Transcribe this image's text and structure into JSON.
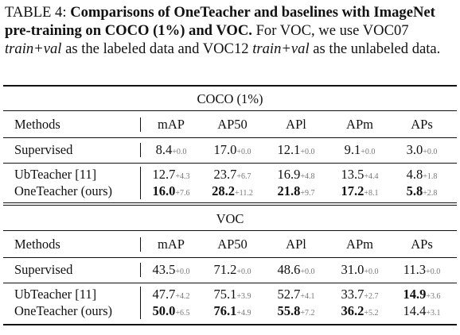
{
  "caption": [
    {
      "text": "TABLE 4: ",
      "style": "normal"
    },
    {
      "text": "Comparisons of OneTeacher and baselines with ImageNet pre-training on COCO (1%) and VOC.",
      "style": "bold"
    },
    {
      "text": " For VOC, we use VOC07 ",
      "style": "normal"
    },
    {
      "text": "train+val",
      "style": "italic"
    },
    {
      "text": " as the labeled data and VOC12 ",
      "style": "normal"
    },
    {
      "text": "train+val",
      "style": "italic"
    },
    {
      "text": " as the unlabeled data.",
      "style": "normal"
    }
  ],
  "table": {
    "headers": [
      "Methods",
      "mAP",
      "AP50",
      "APl",
      "APm",
      "APs"
    ],
    "sections": [
      {
        "title": "COCO (1%)",
        "rows": [
          {
            "method": "Supervised",
            "cells": [
              {
                "value": "8.4",
                "gain": "+0.0",
                "bold": false
              },
              {
                "value": "17.0",
                "gain": "+0.0",
                "bold": false
              },
              {
                "value": "12.1",
                "gain": "+0.0",
                "bold": false
              },
              {
                "value": "9.1",
                "gain": "+0.0",
                "bold": false
              },
              {
                "value": "3.0",
                "gain": "+0.0",
                "bold": false
              }
            ]
          },
          {
            "method": "UbTeacher [11]",
            "cells": [
              {
                "value": "12.7",
                "gain": "+4.3",
                "bold": false
              },
              {
                "value": "23.7",
                "gain": "+6.7",
                "bold": false
              },
              {
                "value": "16.9",
                "gain": "+4.8",
                "bold": false
              },
              {
                "value": "13.5",
                "gain": "+4.4",
                "bold": false
              },
              {
                "value": "4.8",
                "gain": "+1.8",
                "bold": false
              }
            ]
          },
          {
            "method": "OneTeacher (ours)",
            "cells": [
              {
                "value": "16.0",
                "gain": "+7.6",
                "bold": true
              },
              {
                "value": "28.2",
                "gain": "+11.2",
                "bold": true
              },
              {
                "value": "21.8",
                "gain": "+9.7",
                "bold": true
              },
              {
                "value": "17.2",
                "gain": "+8.1",
                "bold": true
              },
              {
                "value": "5.8",
                "gain": "+2.8",
                "bold": true
              }
            ]
          }
        ]
      },
      {
        "title": "VOC",
        "rows": [
          {
            "method": "Supervised",
            "cells": [
              {
                "value": "43.5",
                "gain": "+0.0",
                "bold": false
              },
              {
                "value": "71.2",
                "gain": "+0.0",
                "bold": false
              },
              {
                "value": "48.6",
                "gain": "+0.0",
                "bold": false
              },
              {
                "value": "31.0",
                "gain": "+0.0",
                "bold": false
              },
              {
                "value": "11.3",
                "gain": "+0.0",
                "bold": false
              }
            ]
          },
          {
            "method": "UbTeacher [11]",
            "cells": [
              {
                "value": "47.7",
                "gain": "+4.2",
                "bold": false
              },
              {
                "value": "75.1",
                "gain": "+3.9",
                "bold": false
              },
              {
                "value": "52.7",
                "gain": "+4.1",
                "bold": false
              },
              {
                "value": "33.7",
                "gain": "+2.7",
                "bold": false
              },
              {
                "value": "14.9",
                "gain": "+3.6",
                "bold": true
              }
            ]
          },
          {
            "method": "OneTeacher (ours)",
            "cells": [
              {
                "value": "50.0",
                "gain": "+6.5",
                "bold": true
              },
              {
                "value": "76.1",
                "gain": "+4.9",
                "bold": true
              },
              {
                "value": "55.8",
                "gain": "+7.2",
                "bold": true
              },
              {
                "value": "36.2",
                "gain": "+5.2",
                "bold": true
              },
              {
                "value": "14.4",
                "gain": "+3.1",
                "bold": false
              }
            ]
          }
        ]
      }
    ]
  }
}
